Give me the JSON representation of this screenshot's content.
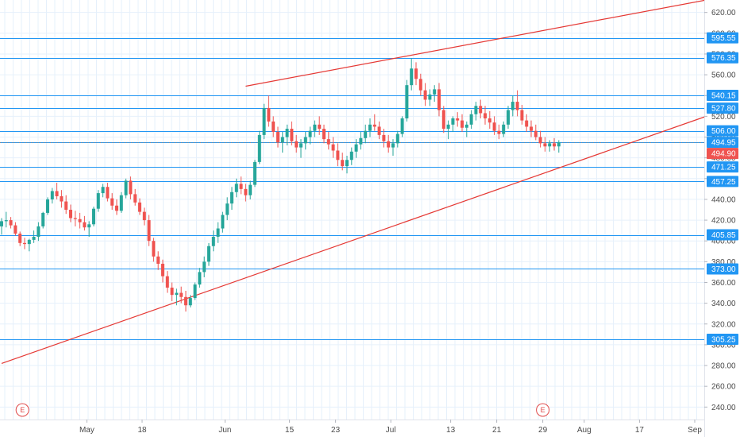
{
  "colors": {
    "up": "#26a69a",
    "down": "#ef5350",
    "level_line": "#2196f3",
    "level_tag_bg": "#2196f3",
    "trendline": "#e53935",
    "price_tag_bg": "#ef5350",
    "last_price_line": "#888888",
    "grid": "#e6f0fb",
    "axis_text": "#4a4a4a"
  },
  "chart_data": {
    "type": "candlestick",
    "symbol_note": "",
    "y_range": [
      228,
      632
    ],
    "y_ticks": [
      {
        "v": 620,
        "label": "620.00"
      },
      {
        "v": 600,
        "label": "600.00"
      },
      {
        "v": 580,
        "label": "580.00"
      },
      {
        "v": 560,
        "label": "560.00"
      },
      {
        "v": 540,
        "label": "540.00"
      },
      {
        "v": 520,
        "label": "520.00"
      },
      {
        "v": 500,
        "label": "500.00"
      },
      {
        "v": 480,
        "label": "480.00"
      },
      {
        "v": 460,
        "label": "460.00"
      },
      {
        "v": 440,
        "label": "440.00"
      },
      {
        "v": 420,
        "label": "420.00"
      },
      {
        "v": 400,
        "label": "400.00"
      },
      {
        "v": 380,
        "label": "380.00"
      },
      {
        "v": 360,
        "label": "360.00"
      },
      {
        "v": 340,
        "label": "340.00"
      },
      {
        "v": 320,
        "label": "320.00"
      },
      {
        "v": 300,
        "label": "300.00"
      },
      {
        "v": 280,
        "label": "280.00"
      },
      {
        "v": 260,
        "label": "260.00"
      },
      {
        "v": 240,
        "label": "240.00"
      }
    ],
    "x_ticks": [
      {
        "i": 18,
        "label": "May"
      },
      {
        "i": 30,
        "label": "18"
      },
      {
        "i": 48,
        "label": "Jun"
      },
      {
        "i": 62,
        "label": "15"
      },
      {
        "i": 72,
        "label": "23"
      },
      {
        "i": 84,
        "label": "Jul"
      },
      {
        "i": 97,
        "label": "13"
      },
      {
        "i": 107,
        "label": "21"
      },
      {
        "i": 117,
        "label": "29"
      },
      {
        "i": 126,
        "label": "Aug"
      },
      {
        "i": 138,
        "label": "17"
      },
      {
        "i": 150,
        "label": "Sep"
      }
    ],
    "horizontal_levels": [
      {
        "value": 595.55,
        "label": "595.55"
      },
      {
        "value": 576.35,
        "label": "576.35"
      },
      {
        "value": 540.15,
        "label": "540.15"
      },
      {
        "value": 527.8,
        "label": "527.80"
      },
      {
        "value": 506.0,
        "label": "506.00"
      },
      {
        "value": 494.95,
        "label": "494.95"
      },
      {
        "value": 471.25,
        "label": "471.25"
      },
      {
        "value": 457.25,
        "label": "457.25"
      },
      {
        "value": 405.85,
        "label": "405.85"
      },
      {
        "value": 373.0,
        "label": "373.00"
      },
      {
        "value": 305.25,
        "label": "305.25"
      }
    ],
    "last_price": {
      "value": 494.9,
      "label": "494.90"
    },
    "trendlines": [
      {
        "from": {
          "i": 0,
          "v": 282
        },
        "to": {
          "i": 153,
          "v": 520
        }
      },
      {
        "from": {
          "i": 53,
          "v": 549
        },
        "to": {
          "i": 153,
          "v": 632
        }
      }
    ],
    "earnings_markers": [
      {
        "i": 4,
        "label": "E"
      },
      {
        "i": 117,
        "label": "E"
      }
    ],
    "candles": [
      [
        414,
        422,
        406,
        419
      ],
      [
        419,
        428,
        413,
        420
      ],
      [
        420,
        423,
        412,
        415
      ],
      [
        415,
        418,
        405,
        407
      ],
      [
        407,
        409,
        395,
        398
      ],
      [
        398,
        403,
        392,
        397
      ],
      [
        397,
        402,
        390,
        401
      ],
      [
        401,
        410,
        398,
        404
      ],
      [
        404,
        418,
        400,
        414
      ],
      [
        414,
        428,
        412,
        427
      ],
      [
        427,
        442,
        425,
        440
      ],
      [
        440,
        451,
        436,
        448
      ],
      [
        448,
        456,
        440,
        443
      ],
      [
        443,
        449,
        432,
        438
      ],
      [
        438,
        444,
        426,
        430
      ],
      [
        430,
        435,
        418,
        422
      ],
      [
        422,
        429,
        414,
        421
      ],
      [
        421,
        427,
        412,
        418
      ],
      [
        418,
        424,
        410,
        413
      ],
      [
        413,
        419,
        404,
        416
      ],
      [
        416,
        433,
        414,
        431
      ],
      [
        431,
        449,
        428,
        446
      ],
      [
        446,
        455,
        442,
        452
      ],
      [
        452,
        456,
        438,
        441
      ],
      [
        441,
        446,
        430,
        434
      ],
      [
        434,
        440,
        425,
        429
      ],
      [
        429,
        447,
        427,
        444
      ],
      [
        444,
        460,
        441,
        458
      ],
      [
        458,
        462,
        440,
        445
      ],
      [
        445,
        450,
        434,
        437
      ],
      [
        437,
        441,
        425,
        428
      ],
      [
        428,
        432,
        415,
        420
      ],
      [
        420,
        425,
        395,
        400
      ],
      [
        400,
        403,
        380,
        385
      ],
      [
        385,
        390,
        372,
        378
      ],
      [
        378,
        382,
        360,
        366
      ],
      [
        366,
        371,
        350,
        355
      ],
      [
        355,
        360,
        342,
        348
      ],
      [
        348,
        354,
        338,
        350
      ],
      [
        350,
        356,
        340,
        346
      ],
      [
        346,
        352,
        332,
        338
      ],
      [
        338,
        348,
        336,
        345
      ],
      [
        345,
        360,
        343,
        358
      ],
      [
        358,
        374,
        355,
        370
      ],
      [
        370,
        385,
        365,
        380
      ],
      [
        380,
        398,
        376,
        395
      ],
      [
        395,
        410,
        390,
        404
      ],
      [
        404,
        418,
        398,
        412
      ],
      [
        412,
        428,
        408,
        425
      ],
      [
        425,
        442,
        420,
        436
      ],
      [
        436,
        452,
        430,
        447
      ],
      [
        447,
        460,
        442,
        455
      ],
      [
        455,
        462,
        445,
        450
      ],
      [
        450,
        455,
        438,
        444
      ],
      [
        444,
        458,
        440,
        454
      ],
      [
        454,
        478,
        452,
        476
      ],
      [
        476,
        506,
        474,
        502
      ],
      [
        502,
        532,
        498,
        528
      ],
      [
        528,
        540,
        510,
        515
      ],
      [
        515,
        520,
        500,
        505
      ],
      [
        505,
        510,
        490,
        495
      ],
      [
        495,
        505,
        485,
        500
      ],
      [
        500,
        512,
        492,
        508
      ],
      [
        508,
        515,
        492,
        496
      ],
      [
        496,
        502,
        485,
        490
      ],
      [
        490,
        498,
        480,
        494
      ],
      [
        494,
        505,
        488,
        500
      ],
      [
        500,
        510,
        493,
        506
      ],
      [
        506,
        516,
        500,
        512
      ],
      [
        512,
        520,
        502,
        508
      ],
      [
        508,
        512,
        494,
        498
      ],
      [
        498,
        505,
        488,
        493
      ],
      [
        493,
        500,
        480,
        487
      ],
      [
        487,
        494,
        472,
        478
      ],
      [
        478,
        485,
        468,
        472
      ],
      [
        472,
        482,
        465,
        478
      ],
      [
        478,
        490,
        473,
        486
      ],
      [
        486,
        498,
        480,
        493
      ],
      [
        493,
        505,
        488,
        499
      ],
      [
        499,
        512,
        494,
        506
      ],
      [
        506,
        518,
        500,
        512
      ],
      [
        512,
        522,
        506,
        510
      ],
      [
        510,
        515,
        498,
        502
      ],
      [
        502,
        508,
        490,
        496
      ],
      [
        496,
        502,
        485,
        490
      ],
      [
        490,
        498,
        482,
        494
      ],
      [
        494,
        506,
        490,
        503
      ],
      [
        503,
        520,
        500,
        518
      ],
      [
        518,
        555,
        515,
        550
      ],
      [
        550,
        576,
        545,
        566
      ],
      [
        566,
        572,
        550,
        556
      ],
      [
        556,
        561,
        540,
        545
      ],
      [
        545,
        552,
        530,
        536
      ],
      [
        536,
        546,
        530,
        541
      ],
      [
        541,
        550,
        534,
        546
      ],
      [
        546,
        552,
        520,
        526
      ],
      [
        526,
        530,
        504,
        508
      ],
      [
        508,
        516,
        498,
        512
      ],
      [
        512,
        520,
        505,
        518
      ],
      [
        518,
        524,
        510,
        516
      ],
      [
        516,
        522,
        505,
        509
      ],
      [
        509,
        515,
        500,
        512
      ],
      [
        512,
        526,
        508,
        522
      ],
      [
        522,
        534,
        516,
        530
      ],
      [
        530,
        536,
        518,
        523
      ],
      [
        523,
        530,
        512,
        518
      ],
      [
        518,
        525,
        508,
        514
      ],
      [
        514,
        520,
        502,
        506
      ],
      [
        506,
        512,
        498,
        503
      ],
      [
        503,
        515,
        500,
        512
      ],
      [
        512,
        530,
        508,
        526
      ],
      [
        526,
        540,
        520,
        534
      ],
      [
        534,
        545,
        520,
        526
      ],
      [
        526,
        531,
        512,
        516
      ],
      [
        516,
        522,
        505,
        510
      ],
      [
        510,
        516,
        500,
        506
      ],
      [
        506,
        512,
        497,
        500
      ],
      [
        500,
        506,
        490,
        494
      ],
      [
        494,
        500,
        486,
        491
      ],
      [
        491,
        497,
        486,
        494
      ],
      [
        494,
        499,
        487,
        491
      ],
      [
        491,
        497,
        485,
        495
      ]
    ]
  }
}
